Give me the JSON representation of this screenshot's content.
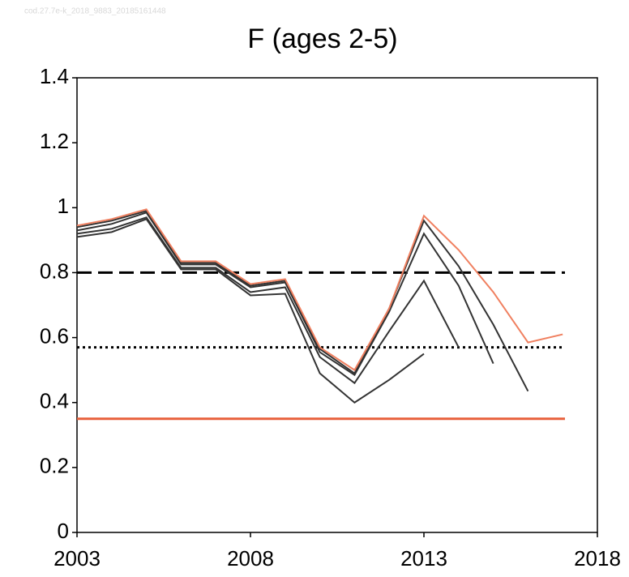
{
  "chart_data": {
    "type": "line",
    "watermark": "cod.27.7e-k_2018_9883_20185161448",
    "title": "F (ages 2-5)",
    "x": [
      2003,
      2004,
      2005,
      2006,
      2007,
      2008,
      2009,
      2010,
      2011,
      2012,
      2013,
      2014,
      2015,
      2016,
      2017
    ],
    "series": [
      {
        "color": "#333333",
        "values": [
          0.91,
          0.925,
          0.965,
          0.81,
          0.81,
          0.73,
          0.735,
          0.49,
          0.4,
          0.47,
          0.55,
          null,
          null,
          null,
          null
        ]
      },
      {
        "color": "#333333",
        "values": [
          0.92,
          0.935,
          0.97,
          0.815,
          0.815,
          0.74,
          0.755,
          0.54,
          0.46,
          0.62,
          0.775,
          0.57,
          null,
          null,
          null
        ]
      },
      {
        "color": "#333333",
        "values": [
          0.93,
          0.95,
          0.985,
          0.825,
          0.825,
          0.755,
          0.77,
          0.555,
          0.485,
          0.68,
          0.92,
          0.76,
          0.52,
          null,
          null
        ]
      },
      {
        "color": "#333333",
        "values": [
          0.94,
          0.96,
          0.99,
          0.83,
          0.83,
          0.76,
          0.775,
          0.565,
          0.49,
          0.69,
          0.96,
          0.82,
          0.64,
          0.435,
          null
        ]
      },
      {
        "color": "#f08060",
        "values": [
          0.945,
          0.965,
          0.995,
          0.835,
          0.835,
          0.765,
          0.78,
          0.57,
          0.5,
          0.69,
          0.975,
          0.87,
          0.74,
          0.585,
          0.61
        ]
      }
    ],
    "reference_lines": [
      {
        "value": 0.8,
        "style": "dashed",
        "color": "#000000"
      },
      {
        "value": 0.57,
        "style": "dotted",
        "color": "#000000"
      },
      {
        "value": 0.35,
        "style": "solid",
        "color": "#e8603c"
      }
    ],
    "xlim": [
      2003,
      2018
    ],
    "xticks": [
      2003,
      2008,
      2013,
      2018
    ],
    "ylim": [
      0,
      1.4
    ],
    "yticks": [
      0,
      0.2,
      0.4,
      0.6,
      0.8,
      1,
      1.2,
      1.4
    ],
    "grid": false
  }
}
